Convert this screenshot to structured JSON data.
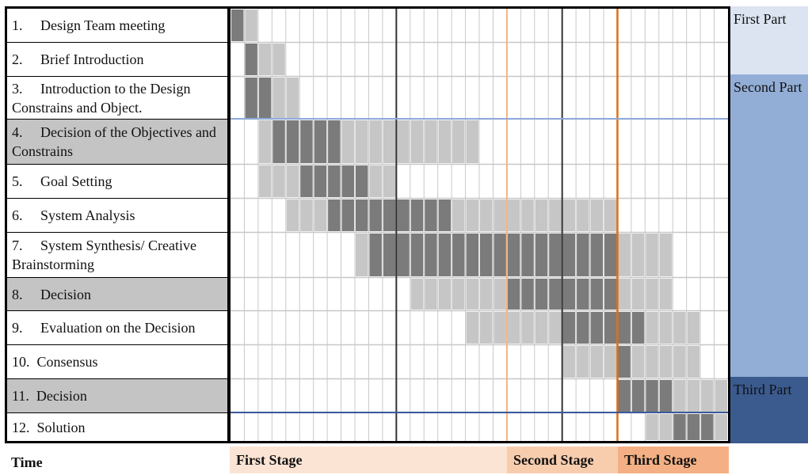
{
  "tasks": [
    "1.     Design Team meeting",
    "2.     Brief Introduction",
    "3.     Introduction to the Design Constrains and Object.",
    "4.     Decision of the Objectives and Constrains",
    "5.     Goal Setting",
    "6.     System Analysis",
    "7.     System Synthesis/ Creative Brainstorming",
    "8.     Decision",
    "9.     Evaluation on the Decision",
    "10.  Consensus",
    "11.  Decision",
    "12.  Solution"
  ],
  "task_shading": [
    "white",
    "white",
    "white",
    "grey",
    "white",
    "white",
    "white",
    "grey",
    "white",
    "white",
    "grey",
    "white"
  ],
  "parts": {
    "first": "First Part",
    "second": "Second Part",
    "third": "Third Part"
  },
  "footer": {
    "time_label": "Time",
    "first_stage": "First Stage",
    "second_stage": "Second Stage",
    "third_stage": "Third Stage"
  },
  "timeline": {
    "columns": 36,
    "stage_boundaries": [
      20,
      28
    ],
    "major_lines": [
      12,
      24
    ],
    "part_dividers_after_row": [
      2,
      10
    ]
  },
  "activity": [
    {
      "light": [
        [
          1,
          1
        ]
      ],
      "dark": [
        [
          0,
          0
        ]
      ]
    },
    {
      "light": [
        [
          2,
          3
        ]
      ],
      "dark": [
        [
          1,
          1
        ]
      ]
    },
    {
      "light": [
        [
          3,
          4
        ]
      ],
      "dark": [
        [
          1,
          2
        ]
      ]
    },
    {
      "light": [
        [
          2,
          2
        ],
        [
          8,
          17
        ]
      ],
      "dark": [
        [
          3,
          7
        ]
      ]
    },
    {
      "light": [
        [
          2,
          4
        ],
        [
          10,
          11
        ]
      ],
      "dark": [
        [
          5,
          9
        ]
      ]
    },
    {
      "light": [
        [
          4,
          6
        ],
        [
          16,
          27
        ]
      ],
      "dark": [
        [
          7,
          15
        ]
      ]
    },
    {
      "light": [
        [
          9,
          9
        ],
        [
          28,
          31
        ]
      ],
      "dark": [
        [
          10,
          27
        ]
      ]
    },
    {
      "light": [
        [
          13,
          19
        ],
        [
          28,
          31
        ]
      ],
      "dark": [
        [
          20,
          27
        ]
      ]
    },
    {
      "light": [
        [
          17,
          23
        ],
        [
          30,
          33
        ]
      ],
      "dark": [
        [
          24,
          29
        ]
      ]
    },
    {
      "light": [
        [
          24,
          27
        ],
        [
          29,
          33
        ]
      ],
      "dark": [
        [
          28,
          28
        ]
      ]
    },
    {
      "light": [
        [
          32,
          35
        ]
      ],
      "dark": [
        [
          28,
          31
        ]
      ]
    },
    {
      "light": [
        [
          30,
          31
        ],
        [
          35,
          35
        ]
      ],
      "dark": [
        [
          32,
          34
        ]
      ]
    }
  ],
  "colors": {
    "light": "#c6c6c6",
    "dark": "#7b7b7b",
    "grid_line": "#c8c8c8",
    "major_line": "#333333",
    "stage_line_1": "#f4b183",
    "stage_line_2": "#e06e10",
    "part_line_1": "#8faadc",
    "part_line_2": "#3b5a9a"
  }
}
